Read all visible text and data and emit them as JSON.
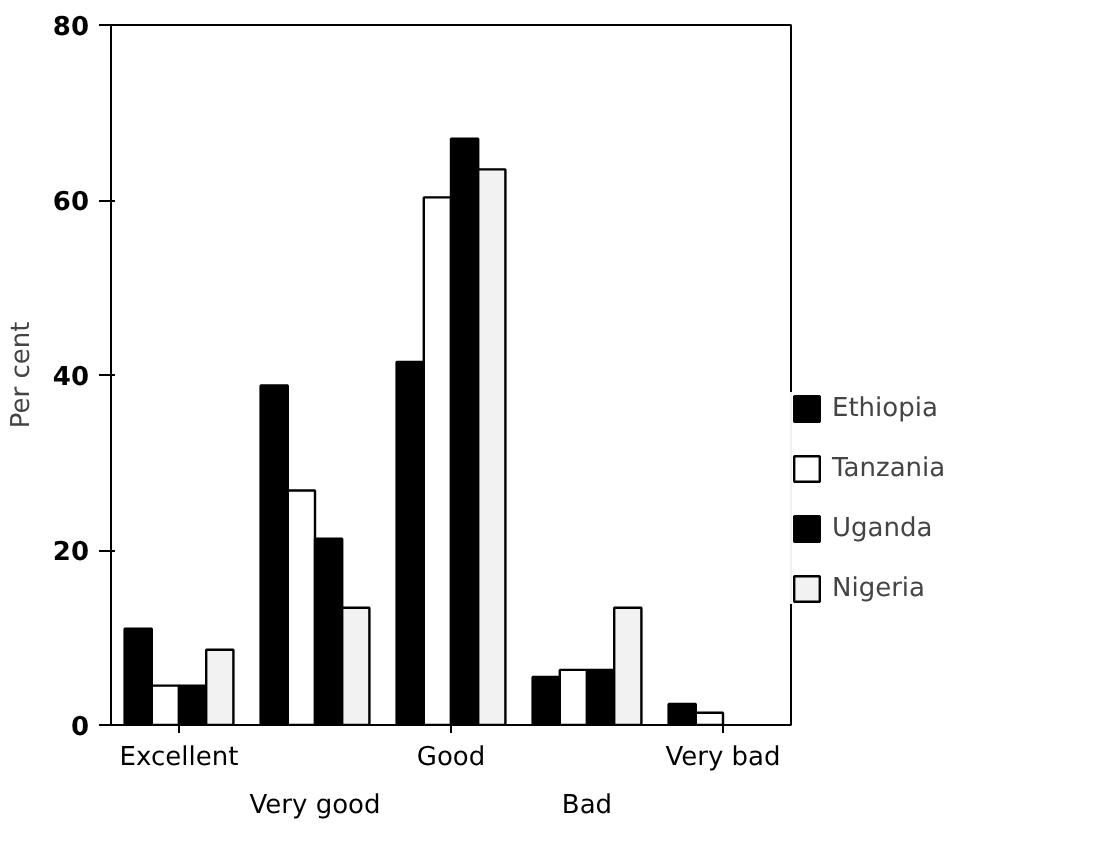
{
  "chart_data": {
    "type": "bar",
    "ylabel": "Per cent",
    "categories": [
      "Excellent",
      "Very good",
      "Good",
      "Bad",
      "Very bad"
    ],
    "series": [
      {
        "name": "Ethiopia",
        "color": "#000000",
        "values": [
          11,
          38.8,
          41.5,
          5.5,
          2.4
        ]
      },
      {
        "name": "Tanzania",
        "color": "#ffffff",
        "values": [
          4.5,
          26.8,
          60.3,
          6.3,
          1.4
        ]
      },
      {
        "name": "Uganda",
        "color": "#000000",
        "values": [
          4.5,
          21.3,
          67,
          6.3,
          null
        ]
      },
      {
        "name": "Nigeria",
        "color": "#f2f2f2",
        "values": [
          8.6,
          13.4,
          63.5,
          13.4,
          null
        ]
      }
    ],
    "ylim": [
      0,
      80
    ],
    "yticks": [
      0,
      20,
      40,
      60,
      80
    ],
    "grid": false,
    "legend": "right"
  }
}
